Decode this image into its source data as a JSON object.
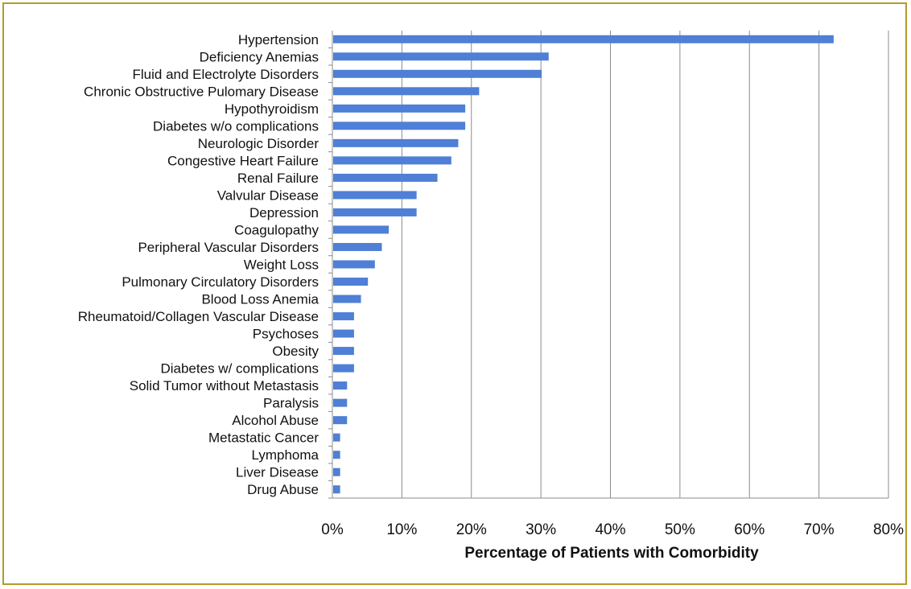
{
  "chart_data": {
    "type": "bar",
    "orientation": "horizontal",
    "categories": [
      "Hypertension",
      "Deficiency Anemias",
      "Fluid and Electrolyte Disorders",
      "Chronic Obstructive Pulomary Disease",
      "Hypothyroidism",
      "Diabetes w/o complications",
      "Neurologic Disorder",
      "Congestive Heart Failure",
      "Renal Failure",
      "Valvular Disease",
      "Depression",
      "Coagulopathy",
      "Peripheral Vascular Disorders",
      "Weight Loss",
      "Pulmonary Circulatory Disorders",
      "Blood Loss Anemia",
      "Rheumatoid/Collagen Vascular Disease",
      "Psychoses",
      "Obesity",
      "Diabetes w/ complications",
      "Solid Tumor without Metastasis",
      "Paralysis",
      "Alcohol Abuse",
      "Metastatic Cancer",
      "Lymphoma",
      "Liver Disease",
      "Drug Abuse"
    ],
    "values": [
      72,
      31,
      30,
      21,
      19,
      19,
      18,
      17,
      15,
      12,
      12,
      8,
      7,
      6,
      5,
      4,
      3,
      3,
      3,
      3,
      2,
      2,
      2,
      1,
      1,
      1,
      1
    ],
    "xlim": [
      0,
      80
    ],
    "xticks": [
      "0%",
      "10%",
      "20%",
      "30%",
      "40%",
      "50%",
      "60%",
      "70%",
      "80%"
    ],
    "xlabel": "Percentage of Patients with Comorbidity",
    "ylabel": "",
    "title": "",
    "grid": "vertical",
    "legend": "none",
    "bar_color": "#4f7fd6",
    "grid_color": "#8c8c8c"
  }
}
